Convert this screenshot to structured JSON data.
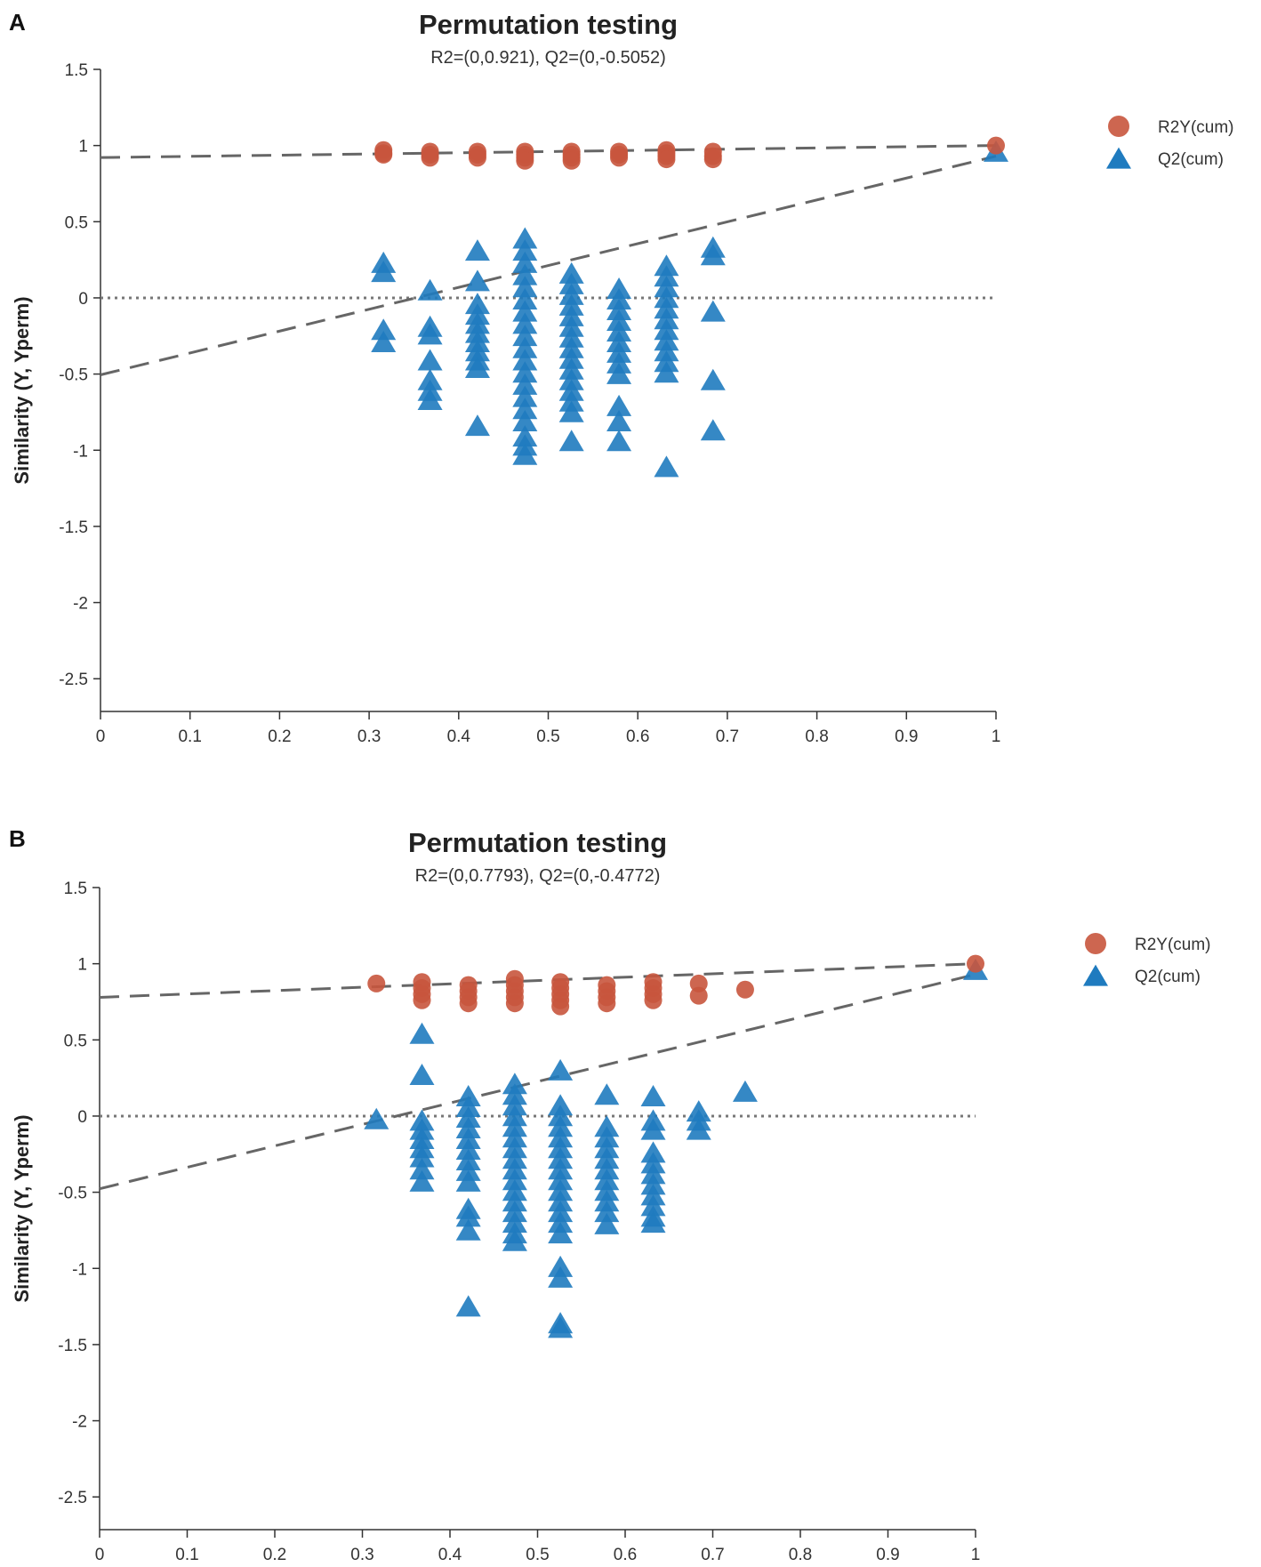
{
  "chart_data": [
    {
      "panel": "A",
      "type": "scatter",
      "title": "Permutation testing",
      "subtitle": "R2=(0,0.921), Q2=(0,-0.5052)",
      "xlabel": "",
      "ylabel": "Similarity (Y, Yperm)",
      "xlim": [
        0,
        1
      ],
      "ylim": [
        -2.75,
        1.5
      ],
      "xticks": [
        "0",
        "0.1",
        "0.2",
        "0.3",
        "0.4",
        "0.5",
        "0.6",
        "0.7",
        "0.8",
        "0.9",
        "1"
      ],
      "yticks": [
        "1.5",
        "1",
        "0.5",
        "0",
        "-0.5",
        "-1",
        "-1.5",
        "-2",
        "-2.5"
      ],
      "colors": {
        "r2": "#c8553d",
        "q2": "#1f7bbf",
        "line": "#666666"
      },
      "legend": [
        "R2Y(cum)",
        "Q2(cum)"
      ],
      "r2_line": [
        0.921,
        1.0
      ],
      "q2_line": [
        -0.5052,
        0.93
      ],
      "r2_points": [
        [
          0.316,
          0.97
        ],
        [
          0.316,
          0.95
        ],
        [
          0.316,
          0.94
        ],
        [
          0.368,
          0.96
        ],
        [
          0.368,
          0.94
        ],
        [
          0.368,
          0.92
        ],
        [
          0.421,
          0.96
        ],
        [
          0.421,
          0.94
        ],
        [
          0.421,
          0.92
        ],
        [
          0.474,
          0.96
        ],
        [
          0.474,
          0.94
        ],
        [
          0.474,
          0.92
        ],
        [
          0.474,
          0.9
        ],
        [
          0.526,
          0.96
        ],
        [
          0.526,
          0.94
        ],
        [
          0.526,
          0.92
        ],
        [
          0.526,
          0.9
        ],
        [
          0.579,
          0.96
        ],
        [
          0.579,
          0.94
        ],
        [
          0.579,
          0.92
        ],
        [
          0.632,
          0.97
        ],
        [
          0.632,
          0.95
        ],
        [
          0.632,
          0.93
        ],
        [
          0.632,
          0.91
        ],
        [
          0.684,
          0.96
        ],
        [
          0.684,
          0.93
        ],
        [
          0.684,
          0.91
        ],
        [
          1.0,
          1.0
        ]
      ],
      "q2_points": [
        [
          0.316,
          0.22
        ],
        [
          0.316,
          0.16
        ],
        [
          0.316,
          -0.22
        ],
        [
          0.316,
          -0.3
        ],
        [
          0.368,
          0.04
        ],
        [
          0.368,
          -0.2
        ],
        [
          0.368,
          -0.25
        ],
        [
          0.368,
          -0.42
        ],
        [
          0.368,
          -0.55
        ],
        [
          0.368,
          -0.62
        ],
        [
          0.368,
          -0.68
        ],
        [
          0.421,
          0.3
        ],
        [
          0.421,
          0.1
        ],
        [
          0.421,
          -0.05
        ],
        [
          0.421,
          -0.12
        ],
        [
          0.421,
          -0.18
        ],
        [
          0.421,
          -0.24
        ],
        [
          0.421,
          -0.3
        ],
        [
          0.421,
          -0.36
        ],
        [
          0.421,
          -0.42
        ],
        [
          0.421,
          -0.47
        ],
        [
          0.421,
          -0.85
        ],
        [
          0.474,
          0.38
        ],
        [
          0.474,
          0.3
        ],
        [
          0.474,
          0.22
        ],
        [
          0.474,
          0.14
        ],
        [
          0.474,
          0.06
        ],
        [
          0.474,
          -0.02
        ],
        [
          0.474,
          -0.1
        ],
        [
          0.474,
          -0.18
        ],
        [
          0.474,
          -0.26
        ],
        [
          0.474,
          -0.34
        ],
        [
          0.474,
          -0.42
        ],
        [
          0.474,
          -0.5
        ],
        [
          0.474,
          -0.58
        ],
        [
          0.474,
          -0.66
        ],
        [
          0.474,
          -0.74
        ],
        [
          0.474,
          -0.82
        ],
        [
          0.474,
          -0.92
        ],
        [
          0.474,
          -0.98
        ],
        [
          0.474,
          -1.04
        ],
        [
          0.526,
          0.15
        ],
        [
          0.526,
          0.08
        ],
        [
          0.526,
          0.01
        ],
        [
          0.526,
          -0.06
        ],
        [
          0.526,
          -0.13
        ],
        [
          0.526,
          -0.2
        ],
        [
          0.526,
          -0.27
        ],
        [
          0.526,
          -0.34
        ],
        [
          0.526,
          -0.41
        ],
        [
          0.526,
          -0.48
        ],
        [
          0.526,
          -0.55
        ],
        [
          0.526,
          -0.62
        ],
        [
          0.526,
          -0.69
        ],
        [
          0.526,
          -0.76
        ],
        [
          0.526,
          -0.95
        ],
        [
          0.579,
          0.05
        ],
        [
          0.579,
          -0.02
        ],
        [
          0.579,
          -0.09
        ],
        [
          0.579,
          -0.16
        ],
        [
          0.579,
          -0.23
        ],
        [
          0.579,
          -0.3
        ],
        [
          0.579,
          -0.37
        ],
        [
          0.579,
          -0.44
        ],
        [
          0.579,
          -0.51
        ],
        [
          0.579,
          -0.72
        ],
        [
          0.579,
          -0.82
        ],
        [
          0.579,
          -0.95
        ],
        [
          0.632,
          0.2
        ],
        [
          0.632,
          0.13
        ],
        [
          0.632,
          0.06
        ],
        [
          0.632,
          -0.01
        ],
        [
          0.632,
          -0.08
        ],
        [
          0.632,
          -0.15
        ],
        [
          0.632,
          -0.22
        ],
        [
          0.632,
          -0.29
        ],
        [
          0.632,
          -0.36
        ],
        [
          0.632,
          -0.43
        ],
        [
          0.632,
          -0.5
        ],
        [
          0.632,
          -1.12
        ],
        [
          0.684,
          0.32
        ],
        [
          0.684,
          0.27
        ],
        [
          0.684,
          -0.1
        ],
        [
          0.684,
          -0.55
        ],
        [
          0.684,
          -0.88
        ],
        [
          1.0,
          0.95
        ]
      ]
    },
    {
      "panel": "B",
      "type": "scatter",
      "title": "Permutation testing",
      "subtitle": "R2=(0,0.7793), Q2=(0,-0.4772)",
      "xlabel": "",
      "ylabel": "Similarity (Y, Yperm)",
      "xlim": [
        0,
        1
      ],
      "ylim": [
        -2.75,
        1.5
      ],
      "xticks": [
        "0",
        "0.1",
        "0.2",
        "0.3",
        "0.4",
        "0.5",
        "0.6",
        "0.7",
        "0.8",
        "0.9",
        "1"
      ],
      "yticks": [
        "1.5",
        "1",
        "0.5",
        "0",
        "-0.5",
        "-1",
        "-1.5",
        "-2",
        "-2.5"
      ],
      "colors": {
        "r2": "#c8553d",
        "q2": "#1f7bbf",
        "line": "#666666"
      },
      "legend": [
        "R2Y(cum)",
        "Q2(cum)"
      ],
      "r2_line": [
        0.7793,
        1.0
      ],
      "q2_line": [
        -0.4772,
        0.93
      ],
      "r2_points": [
        [
          0.316,
          0.87
        ],
        [
          0.368,
          0.88
        ],
        [
          0.368,
          0.84
        ],
        [
          0.368,
          0.8
        ],
        [
          0.368,
          0.76
        ],
        [
          0.421,
          0.86
        ],
        [
          0.421,
          0.82
        ],
        [
          0.421,
          0.78
        ],
        [
          0.421,
          0.74
        ],
        [
          0.474,
          0.9
        ],
        [
          0.474,
          0.86
        ],
        [
          0.474,
          0.82
        ],
        [
          0.474,
          0.78
        ],
        [
          0.474,
          0.74
        ],
        [
          0.526,
          0.88
        ],
        [
          0.526,
          0.84
        ],
        [
          0.526,
          0.8
        ],
        [
          0.526,
          0.76
        ],
        [
          0.526,
          0.72
        ],
        [
          0.579,
          0.86
        ],
        [
          0.579,
          0.82
        ],
        [
          0.579,
          0.78
        ],
        [
          0.579,
          0.74
        ],
        [
          0.632,
          0.88
        ],
        [
          0.632,
          0.84
        ],
        [
          0.632,
          0.8
        ],
        [
          0.632,
          0.76
        ],
        [
          0.684,
          0.87
        ],
        [
          0.684,
          0.79
        ],
        [
          0.737,
          0.83
        ],
        [
          1.0,
          1.0
        ]
      ],
      "q2_points": [
        [
          0.316,
          -0.03
        ],
        [
          0.368,
          0.53
        ],
        [
          0.368,
          0.26
        ],
        [
          0.368,
          -0.04
        ],
        [
          0.368,
          -0.1
        ],
        [
          0.368,
          -0.16
        ],
        [
          0.368,
          -0.22
        ],
        [
          0.368,
          -0.28
        ],
        [
          0.368,
          -0.36
        ],
        [
          0.368,
          -0.44
        ],
        [
          0.421,
          0.12
        ],
        [
          0.421,
          0.05
        ],
        [
          0.421,
          -0.02
        ],
        [
          0.421,
          -0.09
        ],
        [
          0.421,
          -0.16
        ],
        [
          0.421,
          -0.23
        ],
        [
          0.421,
          -0.3
        ],
        [
          0.421,
          -0.37
        ],
        [
          0.421,
          -0.44
        ],
        [
          0.421,
          -0.62
        ],
        [
          0.421,
          -0.67
        ],
        [
          0.421,
          -0.76
        ],
        [
          0.421,
          -1.26
        ],
        [
          0.474,
          0.2
        ],
        [
          0.474,
          0.13
        ],
        [
          0.474,
          0.06
        ],
        [
          0.474,
          -0.01
        ],
        [
          0.474,
          -0.08
        ],
        [
          0.474,
          -0.15
        ],
        [
          0.474,
          -0.22
        ],
        [
          0.474,
          -0.29
        ],
        [
          0.474,
          -0.36
        ],
        [
          0.474,
          -0.43
        ],
        [
          0.474,
          -0.5
        ],
        [
          0.474,
          -0.57
        ],
        [
          0.474,
          -0.64
        ],
        [
          0.474,
          -0.71
        ],
        [
          0.474,
          -0.78
        ],
        [
          0.474,
          -0.83
        ],
        [
          0.526,
          0.29
        ],
        [
          0.526,
          0.06
        ],
        [
          0.526,
          -0.01
        ],
        [
          0.526,
          -0.08
        ],
        [
          0.526,
          -0.15
        ],
        [
          0.526,
          -0.22
        ],
        [
          0.526,
          -0.29
        ],
        [
          0.526,
          -0.36
        ],
        [
          0.526,
          -0.43
        ],
        [
          0.526,
          -0.5
        ],
        [
          0.526,
          -0.57
        ],
        [
          0.526,
          -0.64
        ],
        [
          0.526,
          -0.71
        ],
        [
          0.526,
          -0.78
        ],
        [
          0.526,
          -1.0
        ],
        [
          0.526,
          -1.07
        ],
        [
          0.526,
          -1.37
        ],
        [
          0.526,
          -1.4
        ],
        [
          0.579,
          0.13
        ],
        [
          0.579,
          -0.08
        ],
        [
          0.579,
          -0.15
        ],
        [
          0.579,
          -0.22
        ],
        [
          0.579,
          -0.29
        ],
        [
          0.579,
          -0.36
        ],
        [
          0.579,
          -0.43
        ],
        [
          0.579,
          -0.5
        ],
        [
          0.579,
          -0.57
        ],
        [
          0.579,
          -0.64
        ],
        [
          0.579,
          -0.72
        ],
        [
          0.632,
          0.12
        ],
        [
          0.632,
          -0.04
        ],
        [
          0.632,
          -0.1
        ],
        [
          0.632,
          -0.25
        ],
        [
          0.632,
          -0.32
        ],
        [
          0.632,
          -0.39
        ],
        [
          0.632,
          -0.46
        ],
        [
          0.632,
          -0.53
        ],
        [
          0.632,
          -0.6
        ],
        [
          0.632,
          -0.67
        ],
        [
          0.632,
          -0.71
        ],
        [
          0.684,
          0.02
        ],
        [
          0.684,
          -0.04
        ],
        [
          0.684,
          -0.1
        ],
        [
          0.737,
          0.15
        ],
        [
          1.0,
          0.95
        ]
      ]
    }
  ]
}
